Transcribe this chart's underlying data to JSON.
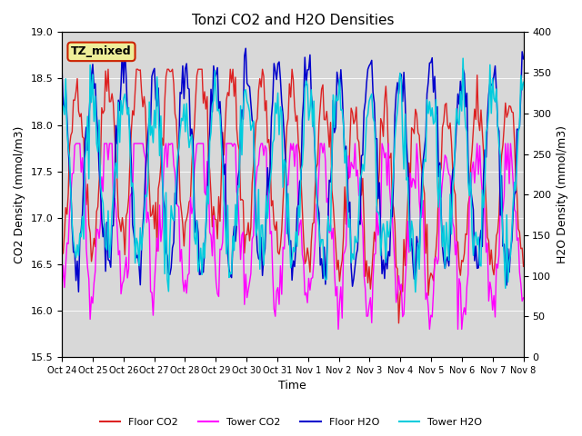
{
  "title": "Tonzi CO2 and H2O Densities",
  "ylabel_left": "CO2 Density (mmol/m3)",
  "ylabel_right": "H2O Density (mmol/m3)",
  "xlabel": "Time",
  "ylim_left": [
    15.5,
    19.0
  ],
  "ylim_right": [
    0,
    400
  ],
  "yticks_left": [
    15.5,
    16.0,
    16.5,
    17.0,
    17.5,
    18.0,
    18.5,
    19.0
  ],
  "yticks_right": [
    0,
    50,
    100,
    150,
    200,
    250,
    300,
    350,
    400
  ],
  "xtick_positions": [
    0,
    1,
    2,
    3,
    4,
    5,
    6,
    7,
    8,
    9,
    10,
    11,
    12,
    13,
    14,
    15
  ],
  "xtick_labels": [
    "Oct 24",
    "Oct 25",
    "Oct 26",
    "Oct 27",
    "Oct 28",
    "Oct 29",
    "Oct 30",
    "Oct 31",
    "Nov 1",
    "Nov 2",
    "Nov 3",
    "Nov 4",
    "Nov 5",
    "Nov 6",
    "Nov 7",
    "Nov 8"
  ],
  "n_points": 360,
  "floor_co2_color": "#dd2222",
  "tower_co2_color": "#ff00ff",
  "floor_h2o_color": "#0000cc",
  "tower_h2o_color": "#00ccdd",
  "bg_shade_color": "#d8d8d8",
  "annotation_text": "TZ_mixed",
  "annotation_bg": "#eeee99",
  "annotation_edge": "#cc2200",
  "legend_labels": [
    "Floor CO2",
    "Tower CO2",
    "Floor H2O",
    "Tower H2O"
  ]
}
